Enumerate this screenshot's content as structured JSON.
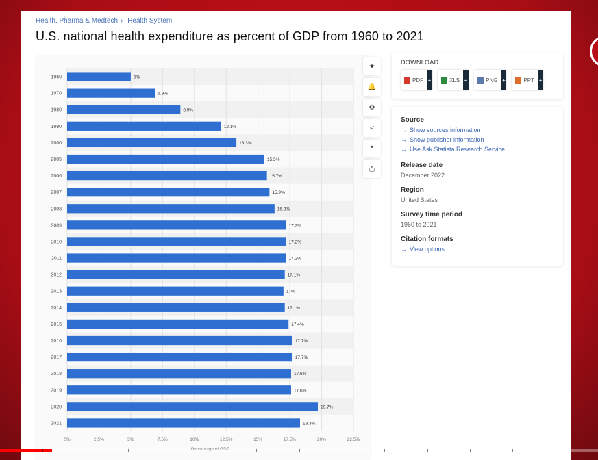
{
  "breadcrumb": [
    "Health, Pharma & Medtech",
    "Health System"
  ],
  "title": "U.S. national health expenditure as percent of GDP from 1960 to 2021",
  "toolbar": [
    {
      "name": "star-icon",
      "glyph": "★"
    },
    {
      "name": "bell-icon",
      "glyph": "🔔"
    },
    {
      "name": "gear-icon",
      "glyph": "⚙"
    },
    {
      "name": "share-icon",
      "glyph": "<"
    },
    {
      "name": "quote-icon",
      "glyph": "❝"
    },
    {
      "name": "print-icon",
      "glyph": "⎙"
    }
  ],
  "download": {
    "title": "DOWNLOAD",
    "buttons": [
      {
        "label": "PDF",
        "color": "#d33a2c"
      },
      {
        "label": "XLS",
        "color": "#2e8b3d"
      },
      {
        "label": "PNG",
        "color": "#5b7aa8"
      },
      {
        "label": "PPT",
        "color": "#e06b2c"
      }
    ]
  },
  "info": {
    "source_heading": "Source",
    "source_links": [
      "Show sources information",
      "Show publisher information",
      "Use Ask Statista Research Service"
    ],
    "release_heading": "Release date",
    "release_value": "December 2022",
    "region_heading": "Region",
    "region_value": "United States",
    "period_heading": "Survey time period",
    "period_value": "1960 to 2021",
    "citation_heading": "Citation formats",
    "citation_link": "View options"
  },
  "chart_data": {
    "type": "bar",
    "orientation": "horizontal",
    "categories": [
      "1960",
      "1970",
      "1980",
      "1990",
      "2000",
      "2005",
      "2006",
      "2007",
      "2008",
      "2009",
      "2010",
      "2011",
      "2012",
      "2013",
      "2014",
      "2015",
      "2016",
      "2017",
      "2018",
      "2019",
      "2020",
      "2021"
    ],
    "values": [
      5,
      6.9,
      8.9,
      12.1,
      13.3,
      15.5,
      15.7,
      15.9,
      16.3,
      17.2,
      17.2,
      17.2,
      17.1,
      17,
      17.1,
      17.4,
      17.7,
      17.7,
      17.6,
      17.6,
      19.7,
      18.3
    ],
    "data_labels": [
      "5%",
      "6.9%",
      "8.9%",
      "12.1%",
      "13.3%",
      "15.5%",
      "15.7%",
      "15.9%",
      "16.3%",
      "17.2%",
      "17.2%",
      "17.2%",
      "17.1%",
      "17%",
      "17.1%",
      "17.4%",
      "17.7%",
      "17.7%",
      "17.6%",
      "17.6%",
      "19.7%",
      "18.3%"
    ],
    "xticks": [
      "0%",
      "2.5%",
      "5%",
      "7.5%",
      "10%",
      "12.5%",
      "15%",
      "17.5%",
      "20%",
      "22.5%"
    ],
    "xlim": [
      0,
      22.5
    ],
    "xlabel": "Percentage of GDP",
    "bar_color": "#2e6fd1",
    "grid": true
  },
  "video": {
    "progress": 0.087
  }
}
